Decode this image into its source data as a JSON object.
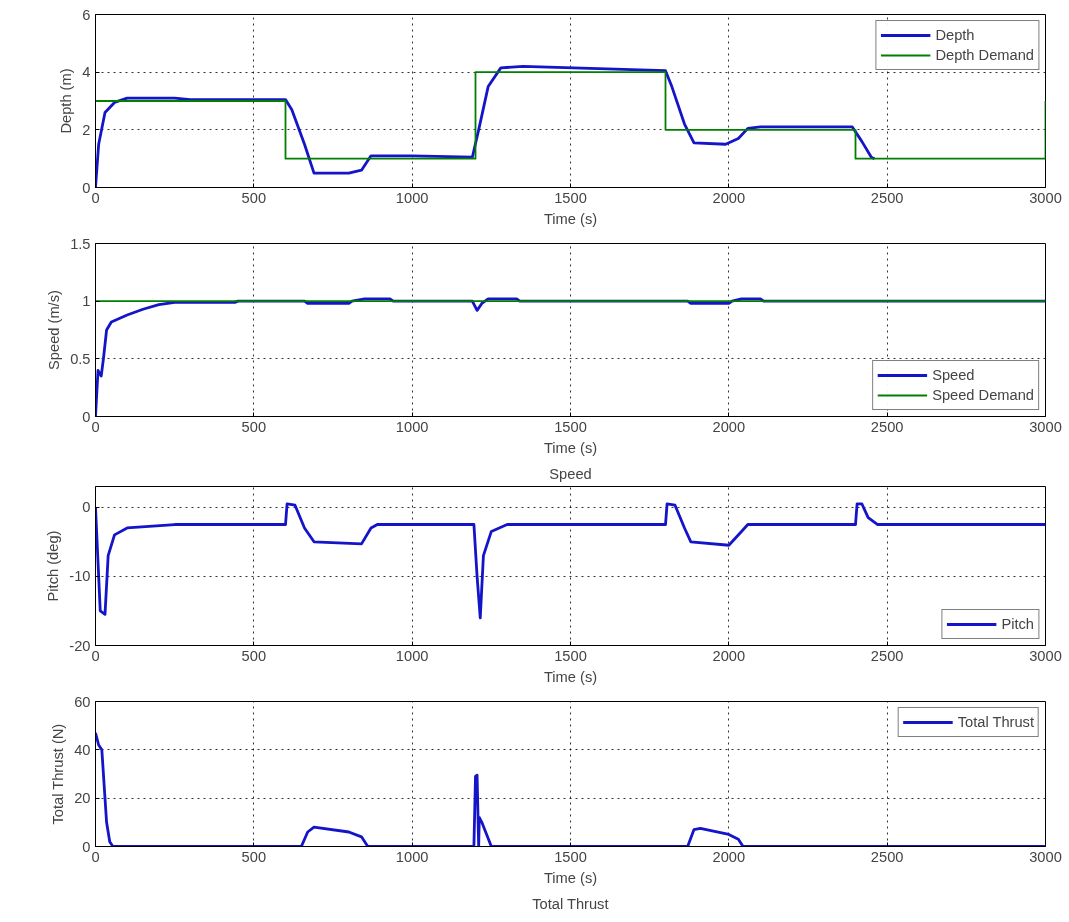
{
  "chart_data": [
    {
      "type": "line",
      "xlabel": "Time (s)",
      "ylabel": "Depth (m)",
      "xlim": [
        0,
        3000
      ],
      "xticks": [
        0,
        500,
        1000,
        1500,
        2000,
        2500,
        3000
      ],
      "ylim": [
        0,
        6
      ],
      "yticks": [
        0,
        2,
        4,
        6
      ],
      "grid": true,
      "legend": "top right",
      "line_style": "solid",
      "series": [
        {
          "name": "Depth",
          "color": "#1414c8",
          "x": [
            0,
            10,
            30,
            60,
            100,
            250,
            300,
            600,
            620,
            660,
            690,
            800,
            840,
            870,
            1000,
            1190,
            1210,
            1240,
            1280,
            1350,
            1800,
            1820,
            1860,
            1890,
            1990,
            2030,
            2060,
            2100,
            2390,
            2420,
            2450,
            2460
          ],
          "values": [
            0,
            1.5,
            2.6,
            2.95,
            3.1,
            3.1,
            3.05,
            3.05,
            2.7,
            1.5,
            0.5,
            0.5,
            0.6,
            1.1,
            1.1,
            1.05,
            2,
            3.5,
            4.15,
            4.2,
            4.05,
            3.5,
            2.2,
            1.55,
            1.5,
            1.7,
            2.05,
            2.1,
            2.1,
            1.6,
            1.05,
            1
          ]
        },
        {
          "name": "Depth Demand",
          "color": "#007f00",
          "x": [
            0,
            600,
            600,
            1200,
            1200,
            1800,
            1800,
            2400,
            2400,
            3000,
            3000
          ],
          "values": [
            3,
            3,
            1,
            1,
            4,
            4,
            2,
            2,
            1,
            1,
            3
          ]
        }
      ]
    },
    {
      "type": "line",
      "xlabel": "Time (s)",
      "ylabel": "Speed (m/s)",
      "xlim": [
        0,
        3000
      ],
      "xticks": [
        0,
        500,
        1000,
        1500,
        2000,
        2500,
        3000
      ],
      "ylim": [
        0,
        1.5
      ],
      "yticks": [
        0,
        0.5,
        1,
        1.5
      ],
      "grid": true,
      "legend": "bottom right",
      "line_style": "solid",
      "series": [
        {
          "name": "Speed",
          "color": "#1414c8",
          "x": [
            0,
            8,
            18,
            25,
            35,
            50,
            100,
            150,
            200,
            250,
            440,
            450,
            660,
            670,
            800,
            810,
            850,
            930,
            940,
            1190,
            1205,
            1220,
            1240,
            1330,
            1340,
            1870,
            1880,
            2000,
            2010,
            2040,
            2100,
            2110,
            3000
          ],
          "values": [
            0,
            0.4,
            0.35,
            0.5,
            0.75,
            0.82,
            0.88,
            0.93,
            0.97,
            0.99,
            0.99,
            1,
            1,
            0.98,
            0.98,
            1,
            1.02,
            1.02,
            1,
            1,
            0.92,
            0.98,
            1.02,
            1.02,
            1,
            1,
            0.98,
            0.98,
            1,
            1.02,
            1.02,
            1,
            1
          ]
        },
        {
          "name": "Speed Demand",
          "color": "#007f00",
          "x": [
            0,
            3000
          ],
          "values": [
            1,
            1
          ]
        }
      ]
    },
    {
      "type": "line",
      "title": "Speed",
      "xlabel": "Time (s)",
      "ylabel": "Pitch (deg)",
      "xlim": [
        0,
        3000
      ],
      "xticks": [
        0,
        500,
        1000,
        1500,
        2000,
        2500,
        3000
      ],
      "ylim": [
        -20,
        3
      ],
      "yticks": [
        -20,
        -10,
        0
      ],
      "grid": true,
      "legend": "bottom right",
      "line_style": "solid",
      "series": [
        {
          "name": "Pitch",
          "color": "#1414c8",
          "x": [
            0,
            5,
            15,
            30,
            40,
            60,
            100,
            250,
            600,
            605,
            630,
            660,
            690,
            840,
            870,
            890,
            1195,
            1205,
            1215,
            1225,
            1250,
            1300,
            1800,
            1805,
            1830,
            1860,
            1880,
            2000,
            2040,
            2060,
            2400,
            2405,
            2420,
            2440,
            2470,
            3000
          ],
          "values": [
            0,
            -5,
            -15,
            -15.5,
            -7,
            -4,
            -3,
            -2.5,
            -2.5,
            0.5,
            0.3,
            -3,
            -5,
            -5.3,
            -3,
            -2.5,
            -2.5,
            -10,
            -16,
            -7,
            -3.5,
            -2.5,
            -2.5,
            0.5,
            0.3,
            -3,
            -5,
            -5.5,
            -3.5,
            -2.5,
            -2.5,
            0.5,
            0.5,
            -1.5,
            -2.5,
            -2.5
          ]
        }
      ]
    },
    {
      "type": "line",
      "xlabel": "Time (s)",
      "ylabel": "Total Thrust (N)",
      "xlim": [
        0,
        3000
      ],
      "xticks": [
        0,
        500,
        1000,
        1500,
        2000,
        2500,
        3000
      ],
      "ylim": [
        0,
        60
      ],
      "yticks": [
        0,
        20,
        40,
        60
      ],
      "grid": true,
      "legend": "top right",
      "line_style": "solid",
      "annotations": [
        "Total Thrust"
      ],
      "series": [
        {
          "name": "Total Thrust",
          "color": "#1414c8",
          "x": [
            0,
            10,
            20,
            35,
            45,
            55,
            650,
            670,
            690,
            800,
            840,
            860,
            1195,
            1200,
            1205,
            1210,
            1212,
            1220,
            1250,
            1870,
            1890,
            1910,
            2000,
            2030,
            2045,
            3000
          ],
          "values": [
            47,
            42,
            40,
            10,
            2,
            0,
            0,
            6,
            8,
            6,
            4,
            0,
            0,
            29,
            29.5,
            0,
            12,
            10,
            0,
            0,
            7,
            7.5,
            5,
            3,
            0,
            0
          ]
        }
      ]
    }
  ]
}
